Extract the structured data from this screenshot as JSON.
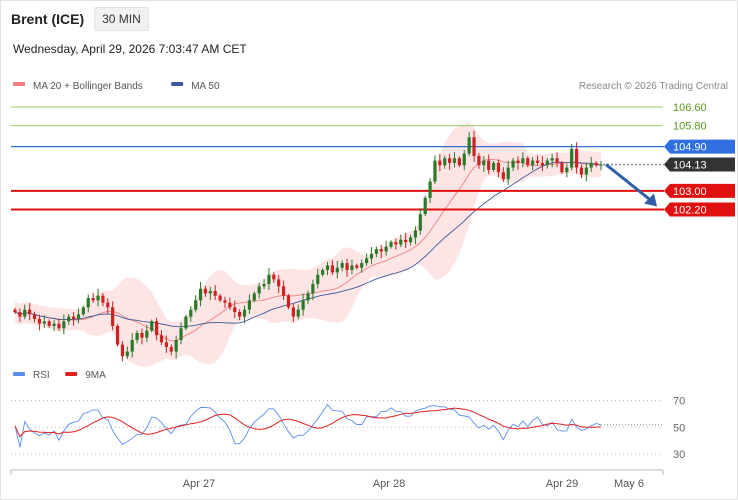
{
  "header": {
    "instrument": "Brent (ICE)",
    "timeframe": "30 MIN",
    "datetime": "Wednesday, April 29, 2026 7:03:47 AM CET"
  },
  "colors": {
    "candle_up": "#2a7a2a",
    "candle_down": "#cc2222",
    "ma20": "#f08080",
    "bollinger_fill": "#fde0e0",
    "ma50": "#3c5a9a",
    "support_resistance": "#e01010",
    "target_green": "#9acd66",
    "pivot_blue": "#2f6fe0",
    "current_price_bg": "#333333",
    "arrow": "#2e5ea8",
    "rsi": "#5b8def",
    "rsi_ma": "#e02020"
  },
  "chart_data": [
    {
      "type": "candlestick",
      "title": "",
      "legend": [
        {
          "name": "MA 20 + Bollinger Bands",
          "color": "#f08080"
        },
        {
          "name": "MA 50",
          "color": "#3c5a9a"
        }
      ],
      "copyright": "Research © 2026 Trading Central",
      "x_ticks": [
        "Apr 27",
        "Apr 28",
        "Apr 29",
        "May 6"
      ],
      "levels": [
        {
          "value": 106.6,
          "label": "106.60",
          "kind": "target"
        },
        {
          "value": 105.8,
          "label": "105.80",
          "kind": "target"
        },
        {
          "value": 104.9,
          "label": "104.90",
          "kind": "pivot"
        },
        {
          "value": 104.13,
          "label": "104.13",
          "kind": "current"
        },
        {
          "value": 103.0,
          "label": "103.00",
          "kind": "support"
        },
        {
          "value": 102.2,
          "label": "102.20",
          "kind": "support"
        }
      ],
      "forecast_arrow": {
        "from": 104.13,
        "to": 102.2,
        "direction": "down"
      },
      "closes": [
        97.8,
        97.6,
        97.9,
        97.7,
        97.5,
        97.3,
        97.4,
        97.2,
        97.3,
        97.1,
        97.4,
        97.6,
        97.5,
        97.7,
        98.0,
        98.4,
        98.3,
        98.5,
        98.2,
        98.0,
        97.2,
        96.4,
        95.9,
        96.1,
        96.6,
        96.9,
        96.7,
        97.0,
        97.4,
        96.8,
        96.5,
        96.3,
        96.1,
        96.6,
        97.1,
        97.6,
        97.9,
        98.3,
        98.8,
        98.6,
        98.7,
        98.5,
        98.3,
        98.2,
        98.0,
        97.8,
        97.6,
        97.9,
        98.3,
        98.6,
        98.9,
        99.0,
        99.4,
        99.2,
        98.9,
        98.5,
        98.0,
        97.6,
        97.9,
        98.3,
        98.6,
        99.0,
        99.4,
        99.6,
        99.8,
        99.5,
        99.7,
        99.9,
        99.6,
        99.8,
        99.7,
        99.9,
        100.1,
        100.3,
        100.5,
        100.4,
        100.6,
        100.8,
        100.7,
        100.9,
        100.8,
        101.0,
        101.3,
        102.0,
        102.7,
        103.4,
        104.3,
        104.1,
        104.4,
        104.2,
        104.4,
        104.1,
        104.6,
        105.3,
        104.5,
        104.1,
        104.3,
        103.9,
        104.2,
        103.8,
        103.5,
        104.0,
        104.3,
        104.2,
        104.4,
        104.1,
        104.3,
        104.2,
        104.1,
        104.3,
        104.4,
        104.2,
        103.8,
        104.0,
        104.8,
        104.0,
        103.7,
        104.0,
        104.2,
        104.1,
        104.13
      ]
    },
    {
      "type": "line",
      "title": "",
      "legend": [
        {
          "name": "RSI",
          "color": "#5b8def"
        },
        {
          "name": "9MA",
          "color": "#e02020"
        }
      ],
      "y_ticks": [
        70,
        50,
        30
      ],
      "ylim": [
        25,
        75
      ],
      "x_ticks": [
        "Apr 27",
        "Apr 28",
        "Apr 29",
        "May 6"
      ]
    }
  ]
}
